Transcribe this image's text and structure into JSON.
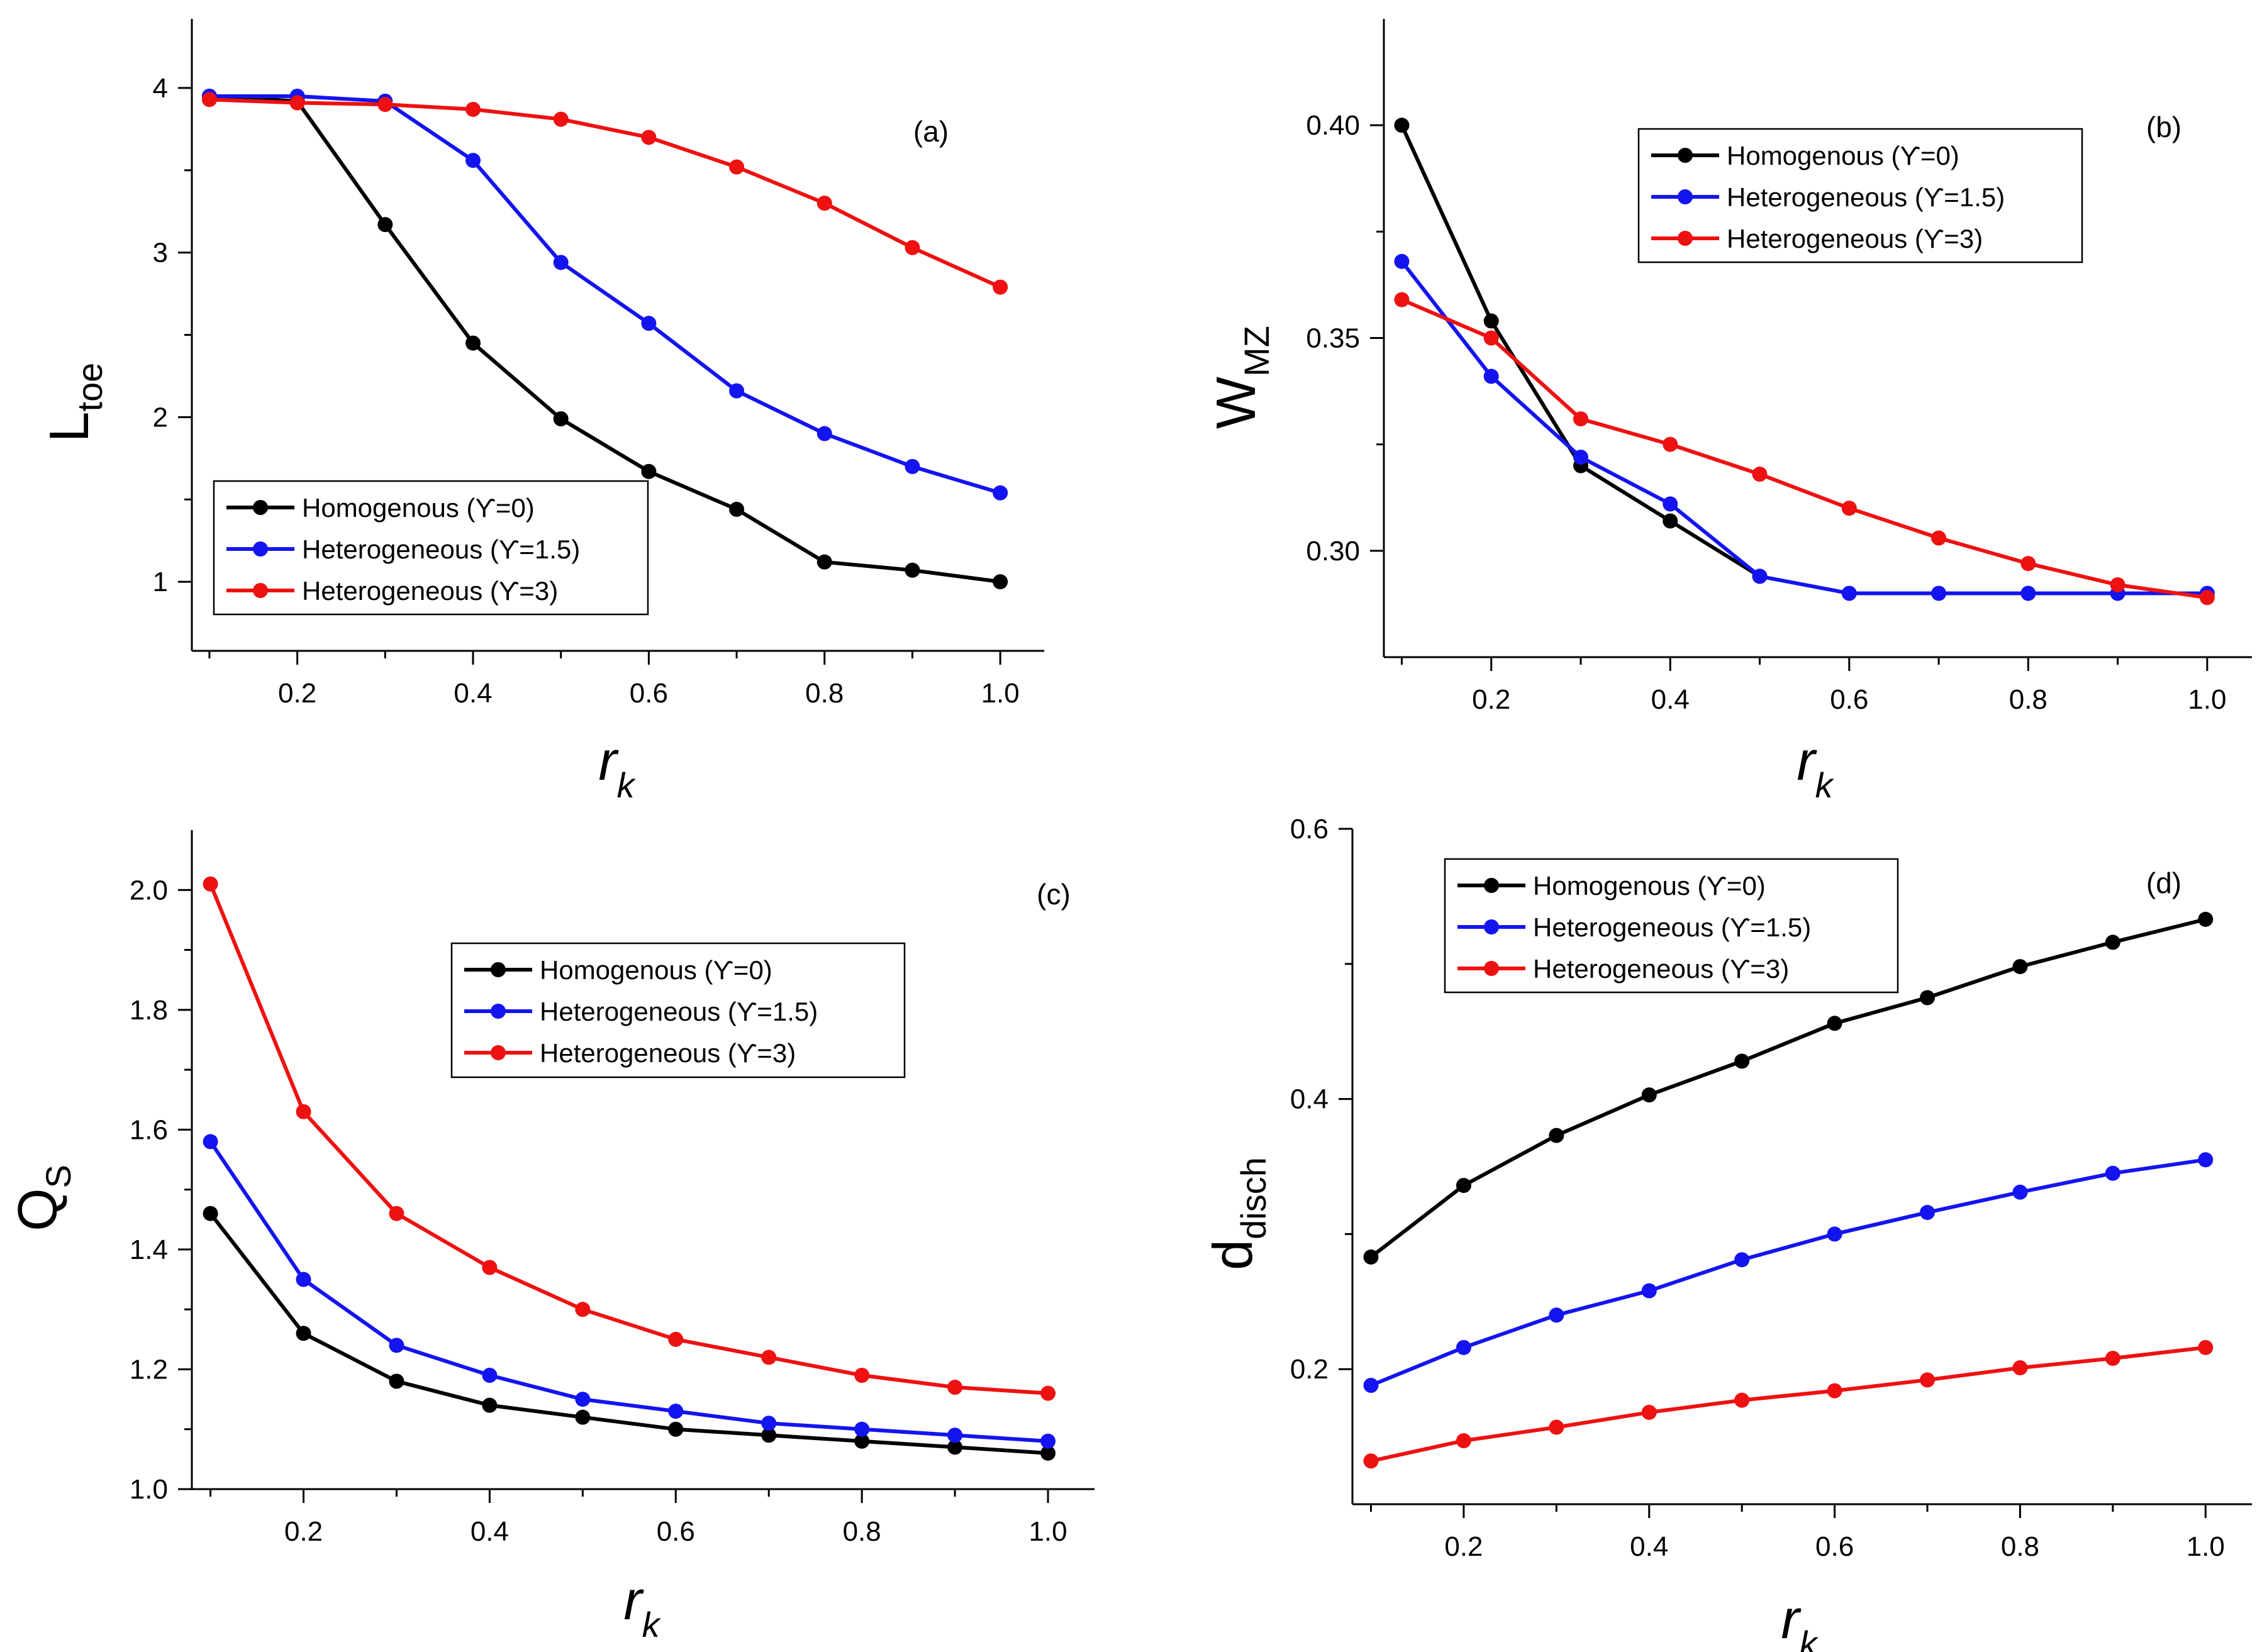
{
  "symbols": {
    "upsilon": "ϒ"
  },
  "colors": {
    "black": "#000000",
    "blue": "#1414f0",
    "red": "#ee1111",
    "axis": "#000000"
  },
  "chart_data": [
    {
      "id": "a",
      "type": "line",
      "panel_label": "(a)",
      "ylabel_main": "L",
      "ylabel_sub": "toe",
      "xlabel": "r",
      "xlabel_sub": "k",
      "xlim": [
        0.08,
        1.05
      ],
      "ylim": [
        0.58,
        4.42
      ],
      "xticks": [
        0.2,
        0.4,
        0.6,
        0.8,
        1.0
      ],
      "xtick_labels": [
        "0.2",
        "0.4",
        "0.6",
        "0.8",
        "1.0"
      ],
      "yticks": [
        1,
        2,
        3,
        4
      ],
      "ytick_labels": [
        "1",
        "2",
        "3",
        "4"
      ],
      "legend_position": "bottom-left",
      "x": [
        0.1,
        0.2,
        0.3,
        0.4,
        0.5,
        0.6,
        0.7,
        0.8,
        0.9,
        1.0
      ],
      "series": [
        {
          "name": "Homogenous (ϒ=0)",
          "color": "#000000",
          "values": [
            3.95,
            3.92,
            3.17,
            2.45,
            1.99,
            1.67,
            1.44,
            1.12,
            1.07,
            1.0
          ]
        },
        {
          "name": "Heterogeneous (ϒ=1.5)",
          "color": "#1414f0",
          "values": [
            3.95,
            3.95,
            3.92,
            3.56,
            2.94,
            2.57,
            2.16,
            1.9,
            1.7,
            1.54
          ]
        },
        {
          "name": "Heterogeneous (ϒ=3)",
          "color": "#ee1111",
          "values": [
            3.93,
            3.91,
            3.9,
            3.87,
            3.81,
            3.7,
            3.52,
            3.3,
            3.03,
            2.79
          ]
        }
      ]
    },
    {
      "id": "b",
      "type": "line",
      "panel_label": "(b)",
      "ylabel_main": "W",
      "ylabel_sub": "MZ",
      "xlabel": "r",
      "xlabel_sub": "k",
      "xlim": [
        0.08,
        1.05
      ],
      "ylim": [
        0.275,
        0.425
      ],
      "xticks": [
        0.2,
        0.4,
        0.6,
        0.8,
        1.0
      ],
      "xtick_labels": [
        "0.2",
        "0.4",
        "0.6",
        "0.8",
        "1.0"
      ],
      "yticks": [
        0.3,
        0.35,
        0.4
      ],
      "ytick_labels": [
        "0.30",
        "0.35",
        "0.40"
      ],
      "legend_position": "top-center",
      "x": [
        0.1,
        0.2,
        0.3,
        0.4,
        0.5,
        0.6,
        0.7,
        0.8,
        0.9,
        1.0
      ],
      "series": [
        {
          "name": "Homogenous (ϒ=0)",
          "color": "#000000",
          "values": [
            0.4,
            0.354,
            0.32,
            0.307,
            0.294,
            null,
            null,
            null,
            null,
            null
          ]
        },
        {
          "name": "Heterogeneous (ϒ=1.5)",
          "color": "#1414f0",
          "values": [
            0.368,
            0.341,
            0.322,
            0.311,
            0.294,
            0.29,
            0.29,
            0.29,
            0.29,
            0.29
          ]
        },
        {
          "name": "Heterogeneous (ϒ=3)",
          "color": "#ee1111",
          "values": [
            0.359,
            0.35,
            0.331,
            0.325,
            0.318,
            0.31,
            0.303,
            0.297,
            0.292,
            0.289
          ]
        }
      ]
    },
    {
      "id": "c",
      "type": "line",
      "panel_label": "(c)",
      "ylabel_main": "Q",
      "ylabel_sub": "S",
      "xlabel": "r",
      "xlabel_sub": "k",
      "xlim": [
        0.08,
        1.05
      ],
      "ylim": [
        1.0,
        2.1
      ],
      "xticks": [
        0.2,
        0.4,
        0.6,
        0.8,
        1.0
      ],
      "xtick_labels": [
        "0.2",
        "0.4",
        "0.6",
        "0.8",
        "1.0"
      ],
      "yticks": [
        1.0,
        1.2,
        1.4,
        1.6,
        1.8,
        2.0
      ],
      "ytick_labels": [
        "1.0",
        "1.2",
        "1.4",
        "1.6",
        "1.8",
        "2.0"
      ],
      "legend_position": "top-center",
      "x": [
        0.1,
        0.2,
        0.3,
        0.4,
        0.5,
        0.6,
        0.7,
        0.8,
        0.9,
        1.0
      ],
      "series": [
        {
          "name": "Homogenous (ϒ=0)",
          "color": "#000000",
          "values": [
            1.46,
            1.26,
            1.18,
            1.14,
            1.12,
            1.1,
            1.09,
            1.08,
            1.07,
            1.06
          ]
        },
        {
          "name": "Heterogeneous (ϒ=1.5)",
          "color": "#1414f0",
          "values": [
            1.58,
            1.35,
            1.24,
            1.19,
            1.15,
            1.13,
            1.11,
            1.1,
            1.09,
            1.08
          ]
        },
        {
          "name": "Heterogeneous (ϒ=3)",
          "color": "#ee1111",
          "values": [
            2.01,
            1.63,
            1.46,
            1.37,
            1.3,
            1.25,
            1.22,
            1.19,
            1.17,
            1.16
          ]
        }
      ]
    },
    {
      "id": "d",
      "type": "line",
      "panel_label": "(d)",
      "ylabel_main": "d",
      "ylabel_sub": "disch",
      "xlabel": "r",
      "xlabel_sub": "k",
      "xlim": [
        0.08,
        1.05
      ],
      "ylim": [
        0.1,
        0.6
      ],
      "xticks": [
        0.2,
        0.4,
        0.6,
        0.8,
        1.0
      ],
      "xtick_labels": [
        "0.2",
        "0.4",
        "0.6",
        "0.8",
        "1.0"
      ],
      "yticks": [
        0.2,
        0.4,
        0.6
      ],
      "ytick_labels": [
        "0.2",
        "0.4",
        "0.6"
      ],
      "legend_position": "top-left",
      "x": [
        0.1,
        0.2,
        0.3,
        0.4,
        0.5,
        0.6,
        0.7,
        0.8,
        0.9,
        1.0
      ],
      "series": [
        {
          "name": "Homogenous (ϒ=0)",
          "color": "#000000",
          "values": [
            0.283,
            0.336,
            0.373,
            0.403,
            0.428,
            0.456,
            0.475,
            0.498,
            0.516,
            0.533
          ]
        },
        {
          "name": "Heterogeneous (ϒ=1.5)",
          "color": "#1414f0",
          "values": [
            0.188,
            0.216,
            0.24,
            0.258,
            0.281,
            0.3,
            0.316,
            0.331,
            0.345,
            0.355
          ]
        },
        {
          "name": "Heterogeneous (ϒ=3)",
          "color": "#ee1111",
          "values": [
            0.132,
            0.147,
            0.157,
            0.168,
            0.177,
            0.184,
            0.192,
            0.201,
            0.208,
            0.216
          ]
        }
      ]
    }
  ]
}
